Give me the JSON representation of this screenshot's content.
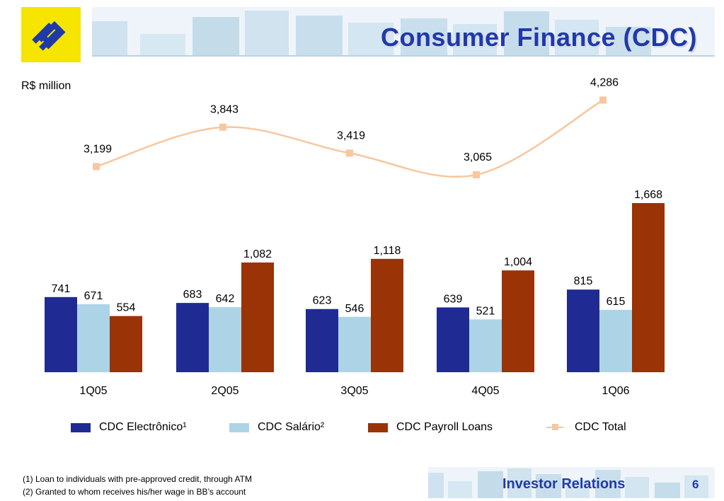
{
  "header": {
    "title": "Consumer Finance (CDC)"
  },
  "colors": {
    "title": "#1f3aa8",
    "logo_yellow": "#f6e500",
    "logo_blue": "#1f3aa8",
    "banner_blue": "#cfe2ef"
  },
  "chart_data": {
    "type": "bar",
    "unit_label": "R$ million",
    "categories": [
      "1Q05",
      "2Q05",
      "3Q05",
      "4Q05",
      "1Q06"
    ],
    "series": [
      {
        "name": "CDC Electrônico¹",
        "color": "#1f2a93",
        "values": [
          741,
          683,
          623,
          639,
          815
        ]
      },
      {
        "name": "CDC Salário²",
        "color": "#add4e6",
        "values": [
          671,
          642,
          546,
          521,
          615
        ]
      },
      {
        "name": "CDC Payroll Loans",
        "color": "#9a3305",
        "values": [
          554,
          1082,
          1118,
          1004,
          1668
        ]
      }
    ],
    "value_labels": [
      [
        "741",
        "683",
        "623",
        "639",
        "815"
      ],
      [
        "671",
        "642",
        "546",
        "521",
        "615"
      ],
      [
        "554",
        "1,082",
        "1,118",
        "1,004",
        "1,668"
      ]
    ],
    "line_series": {
      "name": "CDC Total",
      "color": "#f7c79e",
      "values": [
        3199,
        3843,
        3419,
        3065,
        4286
      ],
      "labels": [
        "3,199",
        "3,843",
        "3,419",
        "3,065",
        "4,286"
      ]
    },
    "legend_position": "bottom",
    "grid": false
  },
  "legend": {
    "items": [
      {
        "label": "CDC Electrônico¹",
        "color": "#1f2a93"
      },
      {
        "label": "CDC Salário²",
        "color": "#add4e6"
      },
      {
        "label": "CDC Payroll Loans",
        "color": "#9a3305"
      },
      {
        "label": "CDC Total",
        "color": "#f7c79e"
      }
    ]
  },
  "footnotes": [
    "(1) Loan to individuals with pre-approved credit, through ATM",
    "(2) Granted to whom receives his/her wage in BB’s account"
  ],
  "footer": {
    "label": "Investor Relations",
    "page_number": "6"
  }
}
